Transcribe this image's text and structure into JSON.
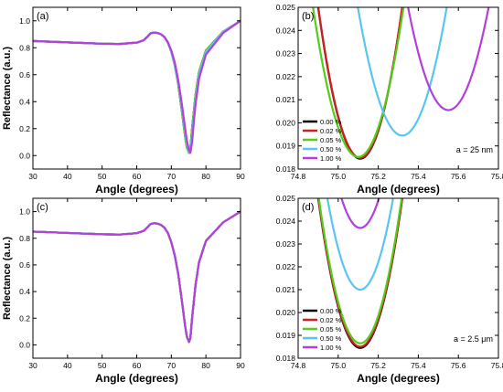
{
  "figure_name": "reflectance-figure",
  "colors": {
    "0.00 %": "#000000",
    "0.02 %": "#cc1f1f",
    "0.05 %": "#55cc1a",
    "0.50 %": "#59c6f0",
    "1.00 %": "#b53fdc"
  },
  "chart_data": [
    {
      "id": "a",
      "type": "line",
      "panel_label": "(a)",
      "xlabel": "Angle (degrees)",
      "ylabel": "Reflectance (a.u.)",
      "xlim": [
        30,
        90
      ],
      "ylim": [
        -0.1,
        1.1
      ],
      "xticks": [
        30,
        40,
        50,
        60,
        70,
        80,
        90
      ],
      "yticks": [
        0.0,
        0.2,
        0.4,
        0.6,
        0.8,
        1.0
      ],
      "xtick_labels": [
        "30",
        "40",
        "50",
        "60",
        "70",
        "80",
        "90"
      ],
      "ytick_labels": [
        "0.0",
        "0.2",
        "0.4",
        "0.6",
        "0.8",
        "1.0"
      ],
      "legend": null,
      "annotation": "",
      "series": [
        {
          "name": "0.00 %",
          "x": [
            30,
            40,
            50,
            55,
            60,
            62,
            63,
            64,
            65,
            66,
            67,
            68,
            69,
            70,
            71,
            72,
            73,
            74,
            74.5,
            75,
            75.1,
            75.5,
            76,
            77,
            78,
            80,
            85,
            90
          ],
          "y": [
            0.85,
            0.84,
            0.83,
            0.828,
            0.838,
            0.855,
            0.88,
            0.907,
            0.913,
            0.91,
            0.9,
            0.88,
            0.84,
            0.77,
            0.67,
            0.53,
            0.34,
            0.14,
            0.06,
            0.03,
            0.02,
            0.05,
            0.2,
            0.45,
            0.62,
            0.78,
            0.92,
            1.0
          ]
        },
        {
          "name": "0.02 %",
          "x": [
            30,
            40,
            50,
            55,
            60,
            62,
            63,
            64,
            65,
            66,
            67,
            68,
            69,
            70,
            71,
            72,
            73,
            74,
            74.5,
            75,
            75.1,
            75.5,
            76,
            77,
            78,
            80,
            85,
            90
          ],
          "y": [
            0.85,
            0.84,
            0.83,
            0.828,
            0.838,
            0.855,
            0.88,
            0.907,
            0.913,
            0.91,
            0.9,
            0.88,
            0.84,
            0.77,
            0.67,
            0.53,
            0.34,
            0.14,
            0.06,
            0.03,
            0.02,
            0.05,
            0.2,
            0.45,
            0.62,
            0.78,
            0.92,
            1.0
          ]
        },
        {
          "name": "0.05 %",
          "x": [
            30,
            40,
            50,
            55,
            60,
            62,
            63,
            64,
            65,
            66,
            67,
            68,
            69,
            70,
            71,
            72,
            73,
            74,
            74.5,
            75,
            75.1,
            75.5,
            76,
            77,
            78,
            80,
            85,
            90
          ],
          "y": [
            0.85,
            0.84,
            0.83,
            0.828,
            0.838,
            0.855,
            0.88,
            0.907,
            0.913,
            0.91,
            0.9,
            0.88,
            0.84,
            0.77,
            0.67,
            0.53,
            0.34,
            0.14,
            0.06,
            0.03,
            0.02,
            0.05,
            0.2,
            0.45,
            0.62,
            0.78,
            0.92,
            1.0
          ]
        },
        {
          "name": "0.50 %",
          "x": [
            30,
            40,
            50,
            55,
            60,
            62,
            63,
            64,
            65,
            66,
            67,
            68,
            69,
            70,
            71,
            72,
            73,
            74,
            74.5,
            75,
            75.3,
            75.5,
            76,
            77,
            78,
            80,
            85,
            90
          ],
          "y": [
            0.85,
            0.84,
            0.83,
            0.828,
            0.838,
            0.855,
            0.88,
            0.907,
            0.913,
            0.91,
            0.9,
            0.88,
            0.84,
            0.77,
            0.67,
            0.54,
            0.36,
            0.17,
            0.08,
            0.04,
            0.02,
            0.04,
            0.16,
            0.42,
            0.6,
            0.77,
            0.92,
            1.0
          ]
        },
        {
          "name": "1.00 %",
          "x": [
            30,
            40,
            50,
            55,
            60,
            62,
            63,
            64,
            65,
            66,
            67,
            68,
            69,
            70,
            71,
            72,
            73,
            74,
            74.5,
            75,
            75.5,
            76,
            76.5,
            77,
            78,
            80,
            85,
            90
          ],
          "y": [
            0.85,
            0.84,
            0.83,
            0.828,
            0.838,
            0.855,
            0.88,
            0.907,
            0.913,
            0.91,
            0.9,
            0.88,
            0.84,
            0.78,
            0.69,
            0.56,
            0.39,
            0.2,
            0.11,
            0.05,
            0.02,
            0.1,
            0.25,
            0.38,
            0.57,
            0.75,
            0.91,
            1.0
          ]
        }
      ]
    },
    {
      "id": "b",
      "type": "line",
      "panel_label": "(b)",
      "xlabel": "Angle (degrees)",
      "ylabel": "",
      "xlim": [
        74.8,
        75.8
      ],
      "ylim": [
        0.018,
        0.025
      ],
      "xticks": [
        74.8,
        75.0,
        75.2,
        75.4,
        75.6,
        75.8
      ],
      "yticks": [
        0.018,
        0.019,
        0.02,
        0.021,
        0.022,
        0.023,
        0.024,
        0.025
      ],
      "xtick_labels": [
        "74.8",
        "75.0",
        "75.2",
        "75.4",
        "75.6",
        "75.8"
      ],
      "ytick_labels": [
        "0.018",
        "0.019",
        "0.020",
        "0.021",
        "0.022",
        "0.023",
        "0.024",
        "0.025"
      ],
      "legend": "bottom-left",
      "annotation": "a = 25 nm",
      "series": [
        {
          "name": "0.00 %",
          "vertex": [
            75.11,
            0.01845
          ],
          "curv": 0.1485
        },
        {
          "name": "0.02 %",
          "vertex": [
            75.11,
            0.01848
          ],
          "curv": 0.1485
        },
        {
          "name": "0.05 %",
          "vertex": [
            75.1,
            0.01852
          ],
          "curv": 0.1271
        },
        {
          "name": "0.50 %",
          "vertex": [
            75.32,
            0.01945
          ],
          "curv": 0.1127
        },
        {
          "name": "1.00 %",
          "vertex": [
            75.55,
            0.02055
          ],
          "curv": 0.11
        }
      ]
    },
    {
      "id": "c",
      "type": "line",
      "panel_label": "(c)",
      "xlabel": "Angle (degrees)",
      "ylabel": "Reflectance (a.u.)",
      "xlim": [
        30,
        90
      ],
      "ylim": [
        -0.1,
        1.1
      ],
      "xticks": [
        30,
        40,
        50,
        60,
        70,
        80,
        90
      ],
      "yticks": [
        0.0,
        0.2,
        0.4,
        0.6,
        0.8,
        1.0
      ],
      "xtick_labels": [
        "30",
        "40",
        "50",
        "60",
        "70",
        "80",
        "90"
      ],
      "ytick_labels": [
        "0.0",
        "0.2",
        "0.4",
        "0.6",
        "0.8",
        "1.0"
      ],
      "legend": null,
      "annotation": "",
      "series": [
        {
          "name": "0.00 %",
          "x": [
            30,
            40,
            50,
            55,
            60,
            62,
            63,
            64,
            65,
            66,
            67,
            68,
            69,
            70,
            71,
            72,
            73,
            74,
            74.5,
            75,
            75.1,
            75.5,
            76,
            77,
            78,
            80,
            85,
            90
          ],
          "y": [
            0.85,
            0.84,
            0.83,
            0.828,
            0.838,
            0.855,
            0.88,
            0.907,
            0.913,
            0.91,
            0.9,
            0.88,
            0.84,
            0.77,
            0.67,
            0.53,
            0.34,
            0.14,
            0.06,
            0.03,
            0.02,
            0.05,
            0.2,
            0.45,
            0.62,
            0.78,
            0.92,
            1.0
          ]
        },
        {
          "name": "0.02 %",
          "x": [
            30,
            40,
            50,
            55,
            60,
            62,
            63,
            64,
            65,
            66,
            67,
            68,
            69,
            70,
            71,
            72,
            73,
            74,
            74.5,
            75,
            75.1,
            75.5,
            76,
            77,
            78,
            80,
            85,
            90
          ],
          "y": [
            0.85,
            0.84,
            0.83,
            0.828,
            0.838,
            0.855,
            0.88,
            0.907,
            0.913,
            0.91,
            0.9,
            0.88,
            0.84,
            0.77,
            0.67,
            0.53,
            0.34,
            0.14,
            0.06,
            0.03,
            0.02,
            0.05,
            0.2,
            0.45,
            0.62,
            0.78,
            0.92,
            1.0
          ]
        },
        {
          "name": "0.05 %",
          "x": [
            30,
            40,
            50,
            55,
            60,
            62,
            63,
            64,
            65,
            66,
            67,
            68,
            69,
            70,
            71,
            72,
            73,
            74,
            74.5,
            75,
            75.1,
            75.5,
            76,
            77,
            78,
            80,
            85,
            90
          ],
          "y": [
            0.85,
            0.84,
            0.83,
            0.828,
            0.838,
            0.855,
            0.88,
            0.907,
            0.913,
            0.91,
            0.9,
            0.88,
            0.84,
            0.77,
            0.67,
            0.53,
            0.34,
            0.14,
            0.06,
            0.03,
            0.02,
            0.05,
            0.2,
            0.45,
            0.62,
            0.78,
            0.92,
            1.0
          ]
        },
        {
          "name": "0.50 %",
          "x": [
            30,
            40,
            50,
            55,
            60,
            62,
            63,
            64,
            65,
            66,
            67,
            68,
            69,
            70,
            71,
            72,
            73,
            74,
            74.5,
            75,
            75.1,
            75.5,
            76,
            77,
            78,
            80,
            85,
            90
          ],
          "y": [
            0.85,
            0.84,
            0.83,
            0.828,
            0.838,
            0.855,
            0.88,
            0.907,
            0.913,
            0.91,
            0.9,
            0.88,
            0.84,
            0.77,
            0.67,
            0.53,
            0.34,
            0.14,
            0.06,
            0.03,
            0.02,
            0.05,
            0.2,
            0.45,
            0.62,
            0.78,
            0.92,
            1.0
          ]
        },
        {
          "name": "1.00 %",
          "x": [
            30,
            40,
            50,
            55,
            60,
            62,
            63,
            64,
            65,
            66,
            67,
            68,
            69,
            70,
            71,
            72,
            73,
            74,
            74.5,
            75,
            75.1,
            75.5,
            76,
            77,
            78,
            80,
            85,
            90
          ],
          "y": [
            0.85,
            0.84,
            0.83,
            0.828,
            0.838,
            0.855,
            0.88,
            0.907,
            0.913,
            0.91,
            0.9,
            0.88,
            0.84,
            0.77,
            0.67,
            0.53,
            0.34,
            0.14,
            0.06,
            0.03,
            0.024,
            0.05,
            0.2,
            0.45,
            0.62,
            0.78,
            0.92,
            1.0
          ]
        }
      ]
    },
    {
      "id": "d",
      "type": "line",
      "panel_label": "(d)",
      "xlabel": "Angle (degrees)",
      "ylabel": "",
      "xlim": [
        74.8,
        75.8
      ],
      "ylim": [
        0.018,
        0.025
      ],
      "xticks": [
        74.8,
        75.0,
        75.2,
        75.4,
        75.6,
        75.8
      ],
      "yticks": [
        0.018,
        0.019,
        0.02,
        0.021,
        0.022,
        0.023,
        0.024,
        0.025
      ],
      "xtick_labels": [
        "74.8",
        "75.0",
        "75.2",
        "75.4",
        "75.6",
        "75.8"
      ],
      "ytick_labels": [
        "0.018",
        "0.019",
        "0.020",
        "0.021",
        "0.022",
        "0.023",
        "0.024",
        "0.025"
      ],
      "legend": "bottom-left",
      "annotation": "a = 2.5 μm",
      "series": [
        {
          "name": "0.00 %",
          "vertex": [
            75.11,
            0.01845
          ],
          "curv": 0.1485
        },
        {
          "name": "0.02 %",
          "vertex": [
            75.11,
            0.0185
          ],
          "curv": 0.1485
        },
        {
          "name": "0.05 %",
          "vertex": [
            75.11,
            0.01865
          ],
          "curv": 0.1485
        },
        {
          "name": "0.50 %",
          "vertex": [
            75.11,
            0.021
          ],
          "curv": 0.1485
        },
        {
          "name": "1.00 %",
          "vertex": [
            75.11,
            0.0237
          ],
          "curv": 0.1485
        }
      ]
    }
  ]
}
